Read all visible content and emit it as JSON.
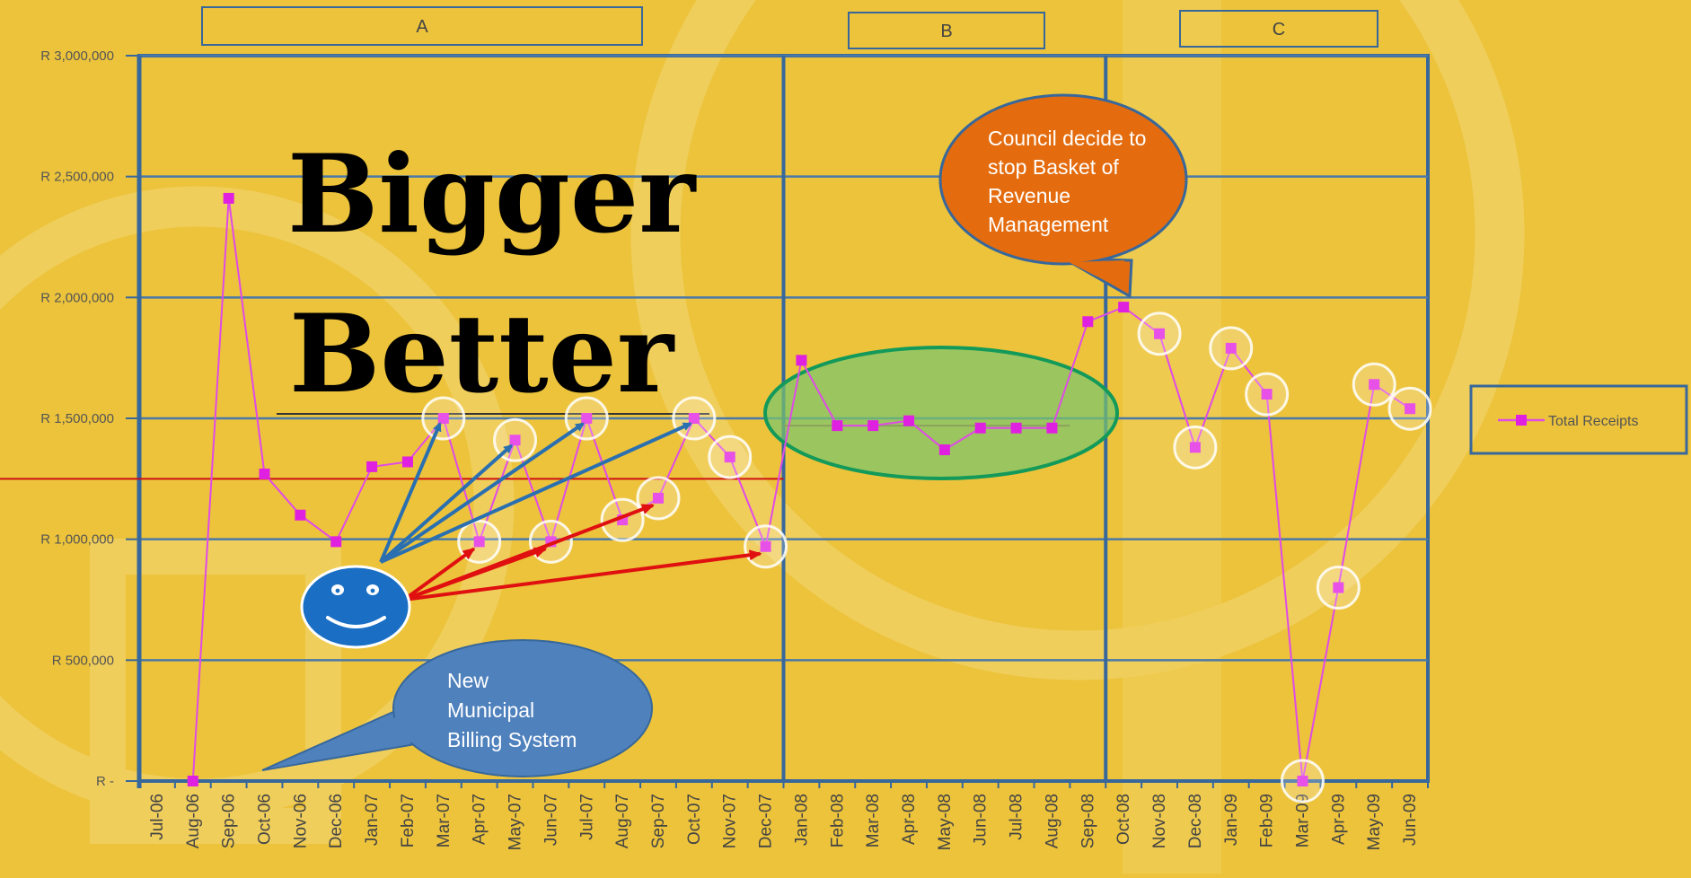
{
  "chart_data": {
    "type": "line",
    "categories": [
      "Jul-06",
      "Aug-06",
      "Sep-06",
      "Oct-06",
      "Nov-06",
      "Dec-06",
      "Jan-07",
      "Feb-07",
      "Mar-07",
      "Apr-07",
      "May-07",
      "Jun-07",
      "Jul-07",
      "Aug-07",
      "Sep-07",
      "Oct-07",
      "Nov-07",
      "Dec-07",
      "Jan-08",
      "Feb-08",
      "Mar-08",
      "Apr-08",
      "May-08",
      "Jun-08",
      "Jul-08",
      "Aug-08",
      "Sep-08",
      "Oct-08",
      "Nov-08",
      "Dec-08",
      "Jan-09",
      "Feb-09",
      "Mar-09",
      "Apr-09",
      "May-09",
      "Jun-09"
    ],
    "series": [
      {
        "name": "Total Receipts",
        "color": "#e04ae8",
        "marker_color": "#e020e0",
        "values": [
          null,
          0,
          2410000,
          1270000,
          1100000,
          990000,
          1300000,
          1320000,
          1500000,
          990000,
          1410000,
          990000,
          1500000,
          1080000,
          1170000,
          1500000,
          1340000,
          970000,
          1740000,
          1470000,
          1470000,
          1490000,
          1370000,
          1460000,
          1460000,
          1460000,
          1900000,
          1960000,
          1850000,
          1380000,
          1790000,
          1600000,
          0,
          800000,
          1640000,
          1540000
        ]
      }
    ],
    "y_tick_labels": [
      "R -",
      "R 500,000",
      "R 1,000,000",
      "R 1,500,000",
      "R 2,000,000",
      "R 2,500,000",
      "R 3,000,000"
    ],
    "ylim": [
      0,
      3000000
    ],
    "grid": true,
    "legend_position": "right",
    "reference_lines": [
      {
        "value": 1250000,
        "color": "#cc1111",
        "span": [
          "Jul-06",
          "Dec-07"
        ]
      },
      {
        "value": 1470000,
        "color": "#b84a3a",
        "span": [
          "Jan-08",
          "Aug-08"
        ]
      }
    ],
    "periods": [
      {
        "label": "A",
        "start": "Jul-06",
        "end": "Dec-07"
      },
      {
        "label": "B",
        "start": "Jan-08",
        "end": "Sep-08"
      },
      {
        "label": "C",
        "start": "Oct-08",
        "end": "Jun-09"
      }
    ],
    "annotations": {
      "headline_line1": "Bigger",
      "headline_line2": "Better",
      "callout_orange_lines": [
        "Council decide to",
        "stop  Basket of",
        "Revenue",
        "Management"
      ],
      "callout_blue_lines": [
        "New",
        "Municipal",
        "Billing System"
      ],
      "highlighted_points": [
        "Mar-07",
        "Apr-07",
        "May-07",
        "Jun-07",
        "Jul-07",
        "Aug-07",
        "Sep-07",
        "Oct-07",
        "Nov-07",
        "Dec-07",
        "Nov-08",
        "Dec-08",
        "Jan-09",
        "Feb-09",
        "Mar-09",
        "Apr-09",
        "May-09",
        "Jun-09"
      ],
      "arrows_blue_to": [
        "Mar-07",
        "May-07",
        "Jul-07",
        "Oct-07"
      ],
      "arrows_red_to": [
        "Apr-07",
        "Jun-07",
        "Sep-07",
        "Dec-07"
      ],
      "ellipse_span": [
        "Jan-08",
        "Aug-08"
      ]
    }
  }
}
